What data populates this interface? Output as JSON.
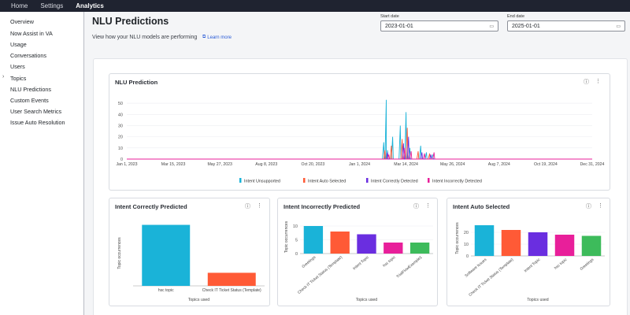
{
  "topnav": {
    "tabs": [
      "Home",
      "Settings",
      "Analytics"
    ],
    "active": "Analytics"
  },
  "sidebar": {
    "items": [
      "Overview",
      "Now Assist in VA",
      "Usage",
      "Conversations",
      "Users",
      "Topics",
      "NLU Predictions",
      "Custom Events",
      "User Search Metrics",
      "Issue Auto Resolution"
    ]
  },
  "page": {
    "title": "NLU Predictions",
    "subtitle": "View how your NLU models are performing",
    "learn_more": "Learn more"
  },
  "filters": {
    "start_label": "Start date",
    "start_value": "2023-01-01",
    "end_label": "End date",
    "end_value": "2025-01-01"
  },
  "colors": {
    "unsupported": "#1ab3d8",
    "auto": "#ff5a36",
    "correct": "#6a2ee0",
    "incorrect": "#e81f9a",
    "green": "#3dbb5b"
  },
  "chart_data": [
    {
      "type": "line",
      "title": "NLU Prediction",
      "ylim": [
        0,
        55
      ],
      "yticks": [
        0,
        10,
        20,
        30,
        40,
        50
      ],
      "x_ticks": [
        "Jan 1, 2023",
        "Mar 15, 2023",
        "May 27, 2023",
        "Aug 8, 2023",
        "Oct 20, 2023",
        "Jan 1, 2024",
        "Mar 14, 2024",
        "May 26, 2024",
        "Aug 7, 2024",
        "Oct 19, 2024",
        "Dec 31, 2024"
      ],
      "xlim": [
        "2023-01-01",
        "2024-12-31"
      ],
      "series": [
        {
          "name": "Intent Unsupported",
          "color": "#1ab3d8",
          "points": [
            [
              "2024-02-08",
              15
            ],
            [
              "2024-02-12",
              53
            ],
            [
              "2024-02-14",
              8
            ],
            [
              "2024-02-22",
              20
            ],
            [
              "2024-03-05",
              30
            ],
            [
              "2024-03-14",
              42
            ],
            [
              "2024-03-20",
              10
            ],
            [
              "2024-04-06",
              12
            ],
            [
              "2024-04-15",
              6
            ],
            [
              "2024-04-25",
              4
            ]
          ]
        },
        {
          "name": "Intent Auto Selected",
          "color": "#ff5a36",
          "points": [
            [
              "2024-02-10",
              8
            ],
            [
              "2024-02-20",
              12
            ],
            [
              "2024-03-08",
              18
            ],
            [
              "2024-03-16",
              28
            ],
            [
              "2024-04-02",
              7
            ],
            [
              "2024-04-20",
              5
            ]
          ]
        },
        {
          "name": "Intent Correctly Detected",
          "color": "#6a2ee0",
          "points": [
            [
              "2024-02-14",
              6
            ],
            [
              "2024-03-10",
              14
            ],
            [
              "2024-03-18",
              20
            ],
            [
              "2024-04-08",
              6
            ],
            [
              "2024-04-22",
              4
            ]
          ]
        },
        {
          "name": "Intent Incorrectly Detected",
          "color": "#e81f9a",
          "points": [
            [
              "2024-02-16",
              4
            ],
            [
              "2024-03-12",
              10
            ],
            [
              "2024-03-22",
              7
            ],
            [
              "2024-04-12",
              5
            ],
            [
              "2024-04-27",
              6
            ]
          ]
        }
      ],
      "legend": [
        "Intent Unsupported",
        "Intent Auto Selected",
        "Intent Correctly Detected",
        "Intent Incorrectly Detected"
      ]
    },
    {
      "type": "bar",
      "title": "Intent Correctly Predicted",
      "ylabel": "Topic occurrences",
      "xlabel": "Topics used",
      "ylim": [
        0,
        15
      ],
      "categories": [
        "hsc topic",
        "Check IT Ticket Status (Template)"
      ],
      "values": [
        14,
        3
      ],
      "colors": [
        "#1ab3d8",
        "#ff5a36"
      ]
    },
    {
      "type": "bar",
      "title": "Intent Incorrectly Predicted",
      "ylabel": "Topic occurrences",
      "xlabel": "Topics used",
      "ylim": [
        0,
        12
      ],
      "yticks": [
        0,
        5,
        10
      ],
      "categories": [
        "Greetings",
        "Check IT Ticket Status (Template)",
        "Intent Topic",
        "hsc topic",
        "TrialFlowExample1"
      ],
      "values": [
        10,
        8,
        7,
        4,
        4
      ],
      "colors": [
        "#1ab3d8",
        "#ff5a36",
        "#6a2ee0",
        "#e81f9a",
        "#3dbb5b"
      ]
    },
    {
      "type": "bar",
      "title": "Intent Auto Selected",
      "ylabel": "Topic occurrences",
      "xlabel": "Topics used",
      "ylim": [
        0,
        30
      ],
      "yticks": [
        0,
        10,
        20
      ],
      "categories": [
        "Software Issues",
        "Check IT Ticket Status (Template)",
        "Intent Topic",
        "hsc topic",
        "Greetings"
      ],
      "values": [
        26,
        22,
        20,
        18,
        17
      ],
      "colors": [
        "#1ab3d8",
        "#ff5a36",
        "#6a2ee0",
        "#e81f9a",
        "#3dbb5b"
      ]
    }
  ]
}
